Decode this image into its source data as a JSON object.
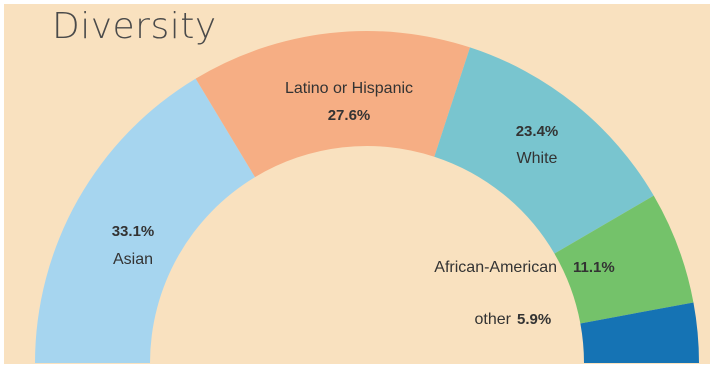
{
  "chart_data": {
    "type": "pie",
    "variant": "half-donut",
    "title": "Diversity",
    "slices": [
      {
        "label": "Asian",
        "value": 33.1,
        "display": "33.1%",
        "color": "#a6d5ef"
      },
      {
        "label": "Latino or Hispanic",
        "value": 27.6,
        "display": "27.6%",
        "color": "#f6ae84"
      },
      {
        "label": "White",
        "value": 23.4,
        "display": "23.4%",
        "color": "#79c5cf"
      },
      {
        "label": "African-American",
        "value": 11.1,
        "display": "11.1%",
        "color": "#74c26a"
      },
      {
        "label": "other",
        "value": 5.9,
        "display": "5.9%",
        "color": "#1573b4"
      }
    ]
  }
}
